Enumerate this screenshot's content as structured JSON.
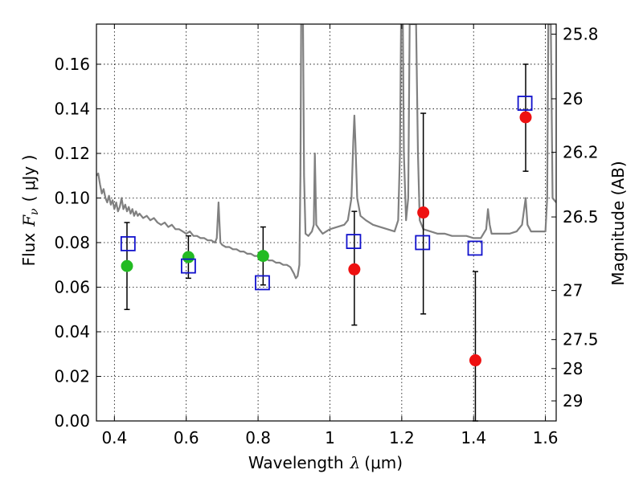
{
  "chart_data": {
    "type": "scatter",
    "xlabel": "Wavelength",
    "xlabel_math": "λ",
    "xlabel_unit": "(μm)",
    "ylabel": "Flux",
    "ylabel_math": "F",
    "ylabel_math_sub": "ν",
    "ylabel_unit": "( μJy )",
    "y2label": "Magnitude (AB)",
    "xlim": [
      0.35,
      1.63
    ],
    "ylim": [
      0.0,
      0.178
    ],
    "grid": true,
    "x_ticks": [
      {
        "value": 0.4,
        "label": "0.4"
      },
      {
        "value": 0.6,
        "label": "0.6"
      },
      {
        "value": 0.8,
        "label": "0.8"
      },
      {
        "value": 1.0,
        "label": "1"
      },
      {
        "value": 1.2,
        "label": "1.2"
      },
      {
        "value": 1.4,
        "label": "1.4"
      },
      {
        "value": 1.6,
        "label": "1.6"
      }
    ],
    "y_ticks": [
      {
        "value": 0.0,
        "label": "0.00"
      },
      {
        "value": 0.02,
        "label": "0.02"
      },
      {
        "value": 0.04,
        "label": "0.04"
      },
      {
        "value": 0.06,
        "label": "0.06"
      },
      {
        "value": 0.08,
        "label": "0.08"
      },
      {
        "value": 0.1,
        "label": "0.10"
      },
      {
        "value": 0.12,
        "label": "0.12"
      },
      {
        "value": 0.14,
        "label": "0.14"
      },
      {
        "value": 0.16,
        "label": "0.16"
      }
    ],
    "y2_ticks": [
      {
        "flux": 0.1735,
        "label": "25.8"
      },
      {
        "flux": 0.1445,
        "label": "26"
      },
      {
        "flux": 0.1205,
        "label": "26.2"
      },
      {
        "flux": 0.0915,
        "label": "26.5"
      },
      {
        "flux": 0.0585,
        "label": "27"
      },
      {
        "flux": 0.0365,
        "label": "27.5"
      },
      {
        "flux": 0.0235,
        "label": "28"
      },
      {
        "flux": 0.009,
        "label": "29"
      }
    ],
    "series": [
      {
        "marker": "circle",
        "color": "#22bb22",
        "points": [
          {
            "x": 0.435,
            "y": 0.0695
          },
          {
            "x": 0.606,
            "y": 0.0735
          },
          {
            "x": 0.814,
            "y": 0.074
          }
        ]
      },
      {
        "marker": "circle",
        "color": "#ee1111",
        "points": [
          {
            "x": 1.068,
            "y": 0.068
          },
          {
            "x": 1.26,
            "y": 0.0935
          },
          {
            "x": 1.405,
            "y": 0.0272
          },
          {
            "x": 1.545,
            "y": 0.1362
          }
        ]
      },
      {
        "marker": "square",
        "color": "#1111cc",
        "points": [
          {
            "x": 0.438,
            "y": 0.0795
          },
          {
            "x": 0.606,
            "y": 0.0695
          },
          {
            "x": 0.812,
            "y": 0.062
          },
          {
            "x": 1.066,
            "y": 0.0805
          },
          {
            "x": 1.258,
            "y": 0.08
          },
          {
            "x": 1.404,
            "y": 0.0775
          },
          {
            "x": 1.543,
            "y": 0.1425
          }
        ]
      }
    ],
    "error_bars": [
      {
        "x": 0.435,
        "low": 0.05,
        "high": 0.089
      },
      {
        "x": 0.606,
        "low": 0.064,
        "high": 0.083
      },
      {
        "x": 0.814,
        "low": 0.061,
        "high": 0.087
      },
      {
        "x": 1.068,
        "low": 0.043,
        "high": 0.094
      },
      {
        "x": 1.26,
        "low": 0.048,
        "high": 0.138
      },
      {
        "x": 1.405,
        "low": 0.0,
        "high": 0.067
      },
      {
        "x": 1.545,
        "low": 0.112,
        "high": 0.16
      }
    ],
    "model_spectrum": {
      "color": "#808080",
      "points": [
        [
          0.35,
          0.11
        ],
        [
          0.355,
          0.111
        ],
        [
          0.36,
          0.106
        ],
        [
          0.365,
          0.102
        ],
        [
          0.37,
          0.104
        ],
        [
          0.375,
          0.1
        ],
        [
          0.38,
          0.098
        ],
        [
          0.385,
          0.101
        ],
        [
          0.39,
          0.097
        ],
        [
          0.395,
          0.099
        ],
        [
          0.4,
          0.095
        ],
        [
          0.405,
          0.098
        ],
        [
          0.41,
          0.094
        ],
        [
          0.415,
          0.096
        ],
        [
          0.42,
          0.1
        ],
        [
          0.425,
          0.095
        ],
        [
          0.43,
          0.097
        ],
        [
          0.435,
          0.094
        ],
        [
          0.44,
          0.096
        ],
        [
          0.445,
          0.093
        ],
        [
          0.45,
          0.095
        ],
        [
          0.455,
          0.092
        ],
        [
          0.46,
          0.094
        ],
        [
          0.465,
          0.092
        ],
        [
          0.47,
          0.093
        ],
        [
          0.48,
          0.091
        ],
        [
          0.49,
          0.092
        ],
        [
          0.5,
          0.09
        ],
        [
          0.51,
          0.091
        ],
        [
          0.52,
          0.089
        ],
        [
          0.53,
          0.088
        ],
        [
          0.54,
          0.089
        ],
        [
          0.55,
          0.087
        ],
        [
          0.56,
          0.088
        ],
        [
          0.57,
          0.086
        ],
        [
          0.58,
          0.086
        ],
        [
          0.59,
          0.085
        ],
        [
          0.6,
          0.084
        ],
        [
          0.61,
          0.085
        ],
        [
          0.62,
          0.083
        ],
        [
          0.63,
          0.083
        ],
        [
          0.64,
          0.082
        ],
        [
          0.65,
          0.082
        ],
        [
          0.66,
          0.081
        ],
        [
          0.67,
          0.081
        ],
        [
          0.68,
          0.08
        ],
        [
          0.685,
          0.082
        ],
        [
          0.69,
          0.098
        ],
        [
          0.695,
          0.08
        ],
        [
          0.7,
          0.079
        ],
        [
          0.71,
          0.078
        ],
        [
          0.72,
          0.078
        ],
        [
          0.73,
          0.077
        ],
        [
          0.74,
          0.077
        ],
        [
          0.75,
          0.076
        ],
        [
          0.76,
          0.076
        ],
        [
          0.77,
          0.075
        ],
        [
          0.78,
          0.075
        ],
        [
          0.79,
          0.074
        ],
        [
          0.8,
          0.074
        ],
        [
          0.81,
          0.073
        ],
        [
          0.82,
          0.073
        ],
        [
          0.83,
          0.072
        ],
        [
          0.84,
          0.072
        ],
        [
          0.85,
          0.071
        ],
        [
          0.86,
          0.071
        ],
        [
          0.87,
          0.07
        ],
        [
          0.88,
          0.07
        ],
        [
          0.89,
          0.069
        ],
        [
          0.9,
          0.066
        ],
        [
          0.905,
          0.064
        ],
        [
          0.91,
          0.065
        ],
        [
          0.915,
          0.07
        ],
        [
          0.918,
          0.11
        ],
        [
          0.92,
          0.178
        ],
        [
          0.925,
          0.178
        ],
        [
          0.928,
          0.11
        ],
        [
          0.932,
          0.084
        ],
        [
          0.94,
          0.083
        ],
        [
          0.95,
          0.085
        ],
        [
          0.955,
          0.088
        ],
        [
          0.958,
          0.12
        ],
        [
          0.962,
          0.088
        ],
        [
          0.97,
          0.086
        ],
        [
          0.98,
          0.084
        ],
        [
          0.99,
          0.085
        ],
        [
          1.0,
          0.086
        ],
        [
          1.02,
          0.087
        ],
        [
          1.04,
          0.088
        ],
        [
          1.05,
          0.09
        ],
        [
          1.06,
          0.1
        ],
        [
          1.065,
          0.125
        ],
        [
          1.068,
          0.137
        ],
        [
          1.071,
          0.125
        ],
        [
          1.076,
          0.1
        ],
        [
          1.085,
          0.092
        ],
        [
          1.1,
          0.09
        ],
        [
          1.12,
          0.088
        ],
        [
          1.14,
          0.087
        ],
        [
          1.16,
          0.086
        ],
        [
          1.18,
          0.085
        ],
        [
          1.19,
          0.09
        ],
        [
          1.195,
          0.12
        ],
        [
          1.198,
          0.178
        ],
        [
          1.203,
          0.178
        ],
        [
          1.206,
          0.12
        ],
        [
          1.212,
          0.09
        ],
        [
          1.218,
          0.1
        ],
        [
          1.222,
          0.178
        ],
        [
          1.24,
          0.178
        ],
        [
          1.245,
          0.12
        ],
        [
          1.25,
          0.09
        ],
        [
          1.26,
          0.086
        ],
        [
          1.28,
          0.085
        ],
        [
          1.3,
          0.084
        ],
        [
          1.32,
          0.084
        ],
        [
          1.34,
          0.083
        ],
        [
          1.36,
          0.083
        ],
        [
          1.38,
          0.083
        ],
        [
          1.4,
          0.082
        ],
        [
          1.42,
          0.082
        ],
        [
          1.435,
          0.086
        ],
        [
          1.44,
          0.095
        ],
        [
          1.445,
          0.088
        ],
        [
          1.45,
          0.084
        ],
        [
          1.48,
          0.084
        ],
        [
          1.5,
          0.084
        ],
        [
          1.52,
          0.085
        ],
        [
          1.535,
          0.088
        ],
        [
          1.545,
          0.1
        ],
        [
          1.55,
          0.088
        ],
        [
          1.56,
          0.085
        ],
        [
          1.58,
          0.085
        ],
        [
          1.6,
          0.085
        ],
        [
          1.605,
          0.1
        ],
        [
          1.608,
          0.178
        ],
        [
          1.615,
          0.178
        ],
        [
          1.62,
          0.1
        ],
        [
          1.63,
          0.098
        ]
      ]
    }
  }
}
